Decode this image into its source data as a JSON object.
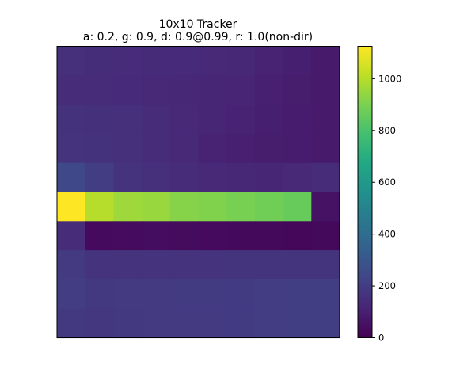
{
  "chart_data": {
    "type": "heatmap",
    "title": "10x10 Tracker",
    "subtitle": "a: 0.2, g: 0.9, d: 0.9@0.99, r: 1.0(non-dir)",
    "xlabel": "",
    "ylabel": "",
    "grid": false,
    "colormap": "viridis",
    "colorbar": {
      "min": 0,
      "max": 1125,
      "ticks": [
        0,
        200,
        400,
        600,
        800,
        1000
      ]
    },
    "matrix": [
      [
        150,
        145,
        140,
        138,
        135,
        130,
        125,
        110,
        95,
        80
      ],
      [
        140,
        140,
        135,
        130,
        125,
        120,
        115,
        100,
        90,
        80
      ],
      [
        160,
        155,
        150,
        140,
        130,
        120,
        105,
        95,
        85,
        80
      ],
      [
        165,
        160,
        150,
        140,
        130,
        110,
        100,
        90,
        85,
        80
      ],
      [
        240,
        200,
        165,
        150,
        140,
        130,
        125,
        120,
        130,
        140
      ],
      [
        1125,
        1000,
        960,
        950,
        920,
        910,
        895,
        880,
        860,
        55
      ],
      [
        140,
        30,
        35,
        40,
        35,
        30,
        25,
        25,
        20,
        25
      ],
      [
        190,
        165,
        165,
        165,
        165,
        165,
        170,
        170,
        170,
        170
      ],
      [
        200,
        185,
        190,
        190,
        195,
        195,
        195,
        200,
        205,
        205
      ],
      [
        185,
        180,
        185,
        190,
        190,
        190,
        195,
        200,
        205,
        205
      ]
    ]
  }
}
